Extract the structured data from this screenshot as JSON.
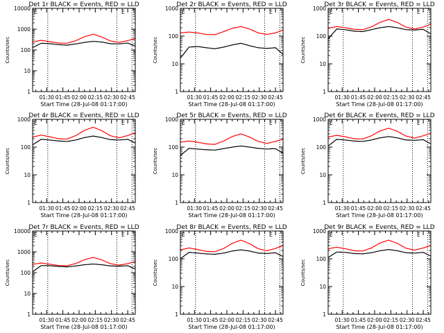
{
  "panels": [
    {
      "title": "Det 1r BLACK = Events, RED = LLD",
      "xlabel": "Start Time (28-Jul-08 01:17:00)",
      "ylabel": "Counts/sec",
      "flag": "E",
      "xtick_labels": [
        "01:30",
        "01:45",
        "02:00",
        "02:15",
        "02:30",
        "02:45"
      ],
      "ytick_labels": [
        "10000",
        "1000",
        "100",
        "10",
        "1"
      ]
    },
    {
      "title": "Det 2r BLACK = Events, RED = LLD",
      "xlabel": "Start Time (28-Jul-08 01:17:00)",
      "ylabel": "Counts/sec",
      "flag": "E",
      "xtick_labels": [
        "01:30",
        "01:45",
        "02:00",
        "02:15",
        "02:30",
        "02:45"
      ],
      "ytick_labels": [
        "1000",
        "100",
        "10",
        "1"
      ]
    },
    {
      "title": "Det 3r BLACK = Events, RED = LLD",
      "xlabel": "Start Time (28-Jul-08 01:17:00)",
      "ylabel": "Counts/sec",
      "flag": "E",
      "xtick_labels": [
        "01:30",
        "01:45",
        "02:00",
        "02:15",
        "02:30",
        "02:45"
      ],
      "ytick_labels": [
        "1000",
        "100",
        "10",
        "1"
      ]
    },
    {
      "title": "Det 4r BLACK = Events, RED = LLD",
      "xlabel": "Start Time (28-Jul-08 01:17:00)",
      "ylabel": "Counts/sec",
      "flag": "E",
      "xtick_labels": [
        "01:30",
        "01:45",
        "02:00",
        "02:15",
        "02:30",
        "02:45"
      ],
      "ytick_labels": [
        "1000",
        "100",
        "10",
        "1"
      ]
    },
    {
      "title": "Det 5r BLACK = Events, RED = LLD",
      "xlabel": "Start Time (28-Jul-08 01:17:00)",
      "ylabel": "Counts/sec",
      "flag": "E",
      "xtick_labels": [
        "01:30",
        "01:45",
        "02:00",
        "02:15",
        "02:30",
        "02:45"
      ],
      "ytick_labels": [
        "1000",
        "100",
        "10",
        "1"
      ]
    },
    {
      "title": "Det 6r BLACK = Events, RED = LLD",
      "xlabel": "Start Time (28-Jul-08 01:17:00)",
      "ylabel": "Counts/sec",
      "flag": "E",
      "xtick_labels": [
        "01:30",
        "01:45",
        "02:00",
        "02:15",
        "02:30",
        "02:45"
      ],
      "ytick_labels": [
        "1000",
        "100",
        "10",
        "1"
      ]
    },
    {
      "title": "Det 7r BLACK = Events, RED = LLD",
      "xlabel": "Start Time (28-Jul-08 01:17:00)",
      "ylabel": "Counts/sec",
      "flag": "E",
      "xtick_labels": [
        "01:30",
        "01:45",
        "02:00",
        "02:15",
        "02:30",
        "02:45"
      ],
      "ytick_labels": [
        "10000",
        "1000",
        "100",
        "10",
        "1"
      ]
    },
    {
      "title": "Det 8r BLACK = Events, RED = LLD",
      "xlabel": "Start Time (28-Jul-08 01:17:00)",
      "ylabel": "Counts/sec",
      "flag": "E",
      "xtick_labels": [
        "01:30",
        "01:45",
        "02:00",
        "02:15",
        "02:30",
        "02:45"
      ],
      "ytick_labels": [
        "1000",
        "100",
        "10",
        "1"
      ]
    },
    {
      "title": "Det 9r BLACK = Events, RED = LLD",
      "xlabel": "Start Time (28-Jul-08 01:17:00)",
      "ylabel": "Counts/sec",
      "flag": "E",
      "xtick_labels": [
        "01:30",
        "01:45",
        "02:00",
        "02:15",
        "02:30",
        "02:45"
      ],
      "ytick_labels": [
        "1000",
        "100",
        "10",
        "1"
      ]
    }
  ],
  "chart_data": [
    {
      "type": "line",
      "title": "Det 1r BLACK = Events, RED = LLD",
      "xlabel": "Start Time (28-Jul-08 01:17:00)",
      "ylabel": "Counts/sec",
      "y_scale": "log",
      "xlim": [
        "01:17",
        "02:52"
      ],
      "ylim": [
        1,
        10000
      ],
      "x": [
        "01:17",
        "01:25",
        "01:33",
        "01:41",
        "01:49",
        "01:57",
        "02:05",
        "02:13",
        "02:21",
        "02:29",
        "02:37",
        "02:45",
        "02:52"
      ],
      "series": [
        {
          "name": "Events",
          "color": "#000000",
          "values": [
            130,
            210,
            200,
            180,
            170,
            195,
            230,
            260,
            240,
            200,
            195,
            215,
            150
          ]
        },
        {
          "name": "LLD",
          "color": "#ff0000",
          "values": [
            240,
            290,
            250,
            215,
            210,
            280,
            430,
            570,
            420,
            270,
            230,
            280,
            360
          ]
        }
      ],
      "vlines": [
        "01:31",
        "02:35",
        "02:49"
      ]
    },
    {
      "type": "line",
      "title": "Det 2r BLACK = Events, RED = LLD",
      "xlabel": "Start Time (28-Jul-08 01:17:00)",
      "ylabel": "Counts/sec",
      "y_scale": "log",
      "xlim": [
        "01:17",
        "02:52"
      ],
      "ylim": [
        1,
        1000
      ],
      "x": [
        "01:17",
        "01:25",
        "01:33",
        "01:41",
        "01:49",
        "01:57",
        "02:05",
        "02:13",
        "02:21",
        "02:29",
        "02:37",
        "02:45",
        "02:52"
      ],
      "series": [
        {
          "name": "Events",
          "color": "#000000",
          "values": [
            16,
            40,
            42,
            38,
            35,
            40,
            48,
            55,
            45,
            38,
            36,
            38,
            22
          ]
        },
        {
          "name": "LLD",
          "color": "#ff0000",
          "values": [
            130,
            140,
            130,
            115,
            112,
            145,
            190,
            220,
            180,
            130,
            115,
            130,
            165
          ]
        }
      ],
      "vlines": [
        "01:31",
        "02:35",
        "02:49"
      ]
    },
    {
      "type": "line",
      "title": "Det 3r BLACK = Events, RED = LLD",
      "xlabel": "Start Time (28-Jul-08 01:17:00)",
      "ylabel": "Counts/sec",
      "y_scale": "log",
      "xlim": [
        "01:17",
        "02:52"
      ],
      "ylim": [
        1,
        1000
      ],
      "x": [
        "01:17",
        "01:25",
        "01:33",
        "01:41",
        "01:49",
        "01:57",
        "02:05",
        "02:13",
        "02:21",
        "02:29",
        "02:37",
        "02:45",
        "02:52"
      ],
      "series": [
        {
          "name": "Events",
          "color": "#000000",
          "values": [
            80,
            180,
            170,
            150,
            145,
            170,
            200,
            220,
            200,
            170,
            165,
            175,
            120
          ]
        },
        {
          "name": "LLD",
          "color": "#ff0000",
          "values": [
            190,
            220,
            200,
            175,
            170,
            215,
            310,
            400,
            310,
            210,
            180,
            210,
            270
          ]
        }
      ],
      "vlines": [
        "01:31",
        "02:35",
        "02:49"
      ]
    },
    {
      "type": "line",
      "title": "Det 4r BLACK = Events, RED = LLD",
      "xlabel": "Start Time (28-Jul-08 01:17:00)",
      "ylabel": "Counts/sec",
      "y_scale": "log",
      "xlim": [
        "01:17",
        "02:52"
      ],
      "ylim": [
        1,
        1000
      ],
      "x": [
        "01:17",
        "01:25",
        "01:33",
        "01:41",
        "01:49",
        "01:57",
        "02:05",
        "02:13",
        "02:21",
        "02:29",
        "02:37",
        "02:45",
        "02:52"
      ],
      "series": [
        {
          "name": "Events",
          "color": "#000000",
          "values": [
            120,
            190,
            180,
            165,
            160,
            180,
            220,
            250,
            220,
            185,
            180,
            190,
            140
          ]
        },
        {
          "name": "LLD",
          "color": "#ff0000",
          "values": [
            230,
            270,
            235,
            200,
            195,
            260,
            400,
            520,
            390,
            255,
            215,
            260,
            330
          ]
        }
      ],
      "vlines": [
        "01:31",
        "02:35",
        "02:49"
      ]
    },
    {
      "type": "line",
      "title": "Det 5r BLACK = Events, RED = LLD",
      "xlabel": "Start Time (28-Jul-08 01:17:00)",
      "ylabel": "Counts/sec",
      "y_scale": "log",
      "xlim": [
        "01:17",
        "02:52"
      ],
      "ylim": [
        1,
        1000
      ],
      "x": [
        "01:17",
        "01:25",
        "01:33",
        "01:41",
        "01:49",
        "01:57",
        "02:05",
        "02:13",
        "02:21",
        "02:29",
        "02:37",
        "02:45",
        "02:52"
      ],
      "series": [
        {
          "name": "Events",
          "color": "#000000",
          "values": [
            50,
            90,
            85,
            80,
            78,
            88,
            100,
            110,
            100,
            90,
            85,
            88,
            60
          ]
        },
        {
          "name": "LLD",
          "color": "#ff0000",
          "values": [
            150,
            165,
            150,
            130,
            125,
            165,
            240,
            300,
            230,
            160,
            135,
            160,
            190
          ]
        }
      ],
      "vlines": [
        "01:31",
        "02:35",
        "02:49"
      ]
    },
    {
      "type": "line",
      "title": "Det 6r BLACK = Events, RED = LLD",
      "xlabel": "Start Time (28-Jul-08 01:17:00)",
      "ylabel": "Counts/sec",
      "y_scale": "log",
      "xlim": [
        "01:17",
        "02:52"
      ],
      "ylim": [
        1,
        1000
      ],
      "x": [
        "01:17",
        "01:25",
        "01:33",
        "01:41",
        "01:49",
        "01:57",
        "02:05",
        "02:13",
        "02:21",
        "02:29",
        "02:37",
        "02:45",
        "02:52"
      ],
      "series": [
        {
          "name": "Events",
          "color": "#000000",
          "values": [
            110,
            190,
            180,
            165,
            160,
            180,
            215,
            240,
            215,
            180,
            175,
            185,
            130
          ]
        },
        {
          "name": "LLD",
          "color": "#ff0000",
          "values": [
            230,
            265,
            235,
            200,
            195,
            255,
            380,
            480,
            370,
            250,
            210,
            255,
            320
          ]
        }
      ],
      "vlines": [
        "01:31",
        "02:35",
        "02:49"
      ]
    },
    {
      "type": "line",
      "title": "Det 7r BLACK = Events, RED = LLD",
      "xlabel": "Start Time (28-Jul-08 01:17:00)",
      "ylabel": "Counts/sec",
      "y_scale": "log",
      "xlim": [
        "01:17",
        "02:52"
      ],
      "ylim": [
        1,
        10000
      ],
      "x": [
        "01:17",
        "01:25",
        "01:33",
        "01:41",
        "01:49",
        "01:57",
        "02:05",
        "02:13",
        "02:21",
        "02:29",
        "02:37",
        "02:45",
        "02:52"
      ],
      "series": [
        {
          "name": "Events",
          "color": "#000000",
          "values": [
            110,
            220,
            215,
            200,
            190,
            210,
            240,
            260,
            240,
            210,
            205,
            215,
            150
          ]
        },
        {
          "name": "LLD",
          "color": "#ff0000",
          "values": [
            250,
            290,
            255,
            220,
            215,
            275,
            420,
            540,
            410,
            270,
            230,
            270,
            340
          ]
        }
      ],
      "vlines": [
        "01:31",
        "02:35",
        "02:49"
      ]
    },
    {
      "type": "line",
      "title": "Det 8r BLACK = Events, RED = LLD",
      "xlabel": "Start Time (28-Jul-08 01:17:00)",
      "ylabel": "Counts/sec",
      "y_scale": "log",
      "xlim": [
        "01:17",
        "02:52"
      ],
      "ylim": [
        1,
        1000
      ],
      "x": [
        "01:17",
        "01:25",
        "01:33",
        "01:41",
        "01:49",
        "01:57",
        "02:05",
        "02:13",
        "02:21",
        "02:29",
        "02:37",
        "02:45",
        "02:52"
      ],
      "series": [
        {
          "name": "Events",
          "color": "#000000",
          "values": [
            100,
            170,
            160,
            150,
            145,
            160,
            190,
            210,
            190,
            160,
            155,
            165,
            120
          ]
        },
        {
          "name": "LLD",
          "color": "#ff0000",
          "values": [
            210,
            245,
            215,
            185,
            180,
            235,
            360,
            470,
            350,
            230,
            195,
            235,
            300
          ]
        }
      ],
      "vlines": [
        "01:31",
        "02:35",
        "02:49"
      ]
    },
    {
      "type": "line",
      "title": "Det 9r BLACK = Events, RED = LLD",
      "xlabel": "Start Time (28-Jul-08 01:17:00)",
      "ylabel": "Counts/sec",
      "y_scale": "log",
      "xlim": [
        "01:17",
        "02:52"
      ],
      "ylim": [
        1,
        1000
      ],
      "x": [
        "01:17",
        "01:25",
        "01:33",
        "01:41",
        "01:49",
        "01:57",
        "02:05",
        "02:13",
        "02:21",
        "02:29",
        "02:37",
        "02:45",
        "02:52"
      ],
      "series": [
        {
          "name": "Events",
          "color": "#000000",
          "values": [
            110,
            175,
            170,
            155,
            150,
            165,
            195,
            215,
            195,
            165,
            160,
            170,
            125
          ]
        },
        {
          "name": "LLD",
          "color": "#ff0000",
          "values": [
            230,
            260,
            230,
            195,
            190,
            245,
            370,
            470,
            360,
            240,
            205,
            245,
            300
          ]
        }
      ],
      "vlines": [
        "01:31",
        "02:35",
        "02:49"
      ]
    }
  ]
}
